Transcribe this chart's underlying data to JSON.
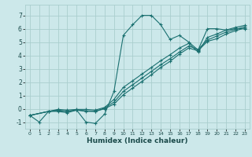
{
  "title": "",
  "xlabel": "Humidex (Indice chaleur)",
  "ylabel": "",
  "bg_color": "#cce8ea",
  "grid_color": "#aacece",
  "line_color": "#1a7070",
  "xlim": [
    -0.5,
    23.5
  ],
  "ylim": [
    -1.5,
    7.8
  ],
  "xticks": [
    0,
    1,
    2,
    3,
    4,
    5,
    6,
    7,
    8,
    9,
    10,
    11,
    12,
    13,
    14,
    15,
    16,
    17,
    18,
    19,
    20,
    21,
    22,
    23
  ],
  "yticks": [
    -1,
    0,
    1,
    2,
    3,
    4,
    5,
    6,
    7
  ],
  "curve1_x": [
    0,
    1,
    2,
    3,
    4,
    5,
    6,
    7,
    8,
    9,
    10,
    11,
    12,
    13,
    14,
    15,
    16,
    17,
    18,
    19,
    20,
    21,
    22,
    23
  ],
  "curve1_y": [
    -0.5,
    -1.0,
    -0.2,
    -0.2,
    -0.3,
    -0.1,
    -1.0,
    -1.1,
    -0.4,
    1.3,
    5.5,
    6.3,
    7.0,
    7.0,
    6.3,
    5.2,
    5.5,
    5.0,
    4.4,
    6.0,
    6.0,
    5.9,
    6.0,
    6.0
  ],
  "curve2_x": [
    0,
    2,
    3,
    4,
    5,
    6,
    7,
    8,
    9,
    10,
    11,
    12,
    13,
    14,
    15,
    16,
    17,
    18,
    19,
    20,
    21,
    22,
    23
  ],
  "curve2_y": [
    -0.5,
    -0.2,
    -0.1,
    -0.2,
    -0.1,
    -0.2,
    -0.2,
    0.0,
    0.35,
    1.05,
    1.55,
    2.05,
    2.55,
    3.1,
    3.55,
    4.1,
    4.55,
    4.35,
    5.05,
    5.25,
    5.6,
    5.85,
    6.05
  ],
  "curve3_x": [
    0,
    2,
    3,
    4,
    5,
    6,
    7,
    8,
    9,
    10,
    11,
    12,
    13,
    14,
    15,
    16,
    17,
    18,
    19,
    20,
    21,
    22,
    23
  ],
  "curve3_y": [
    -0.5,
    -0.2,
    -0.15,
    -0.2,
    -0.1,
    -0.15,
    -0.2,
    0.05,
    0.5,
    1.3,
    1.8,
    2.3,
    2.8,
    3.3,
    3.75,
    4.25,
    4.7,
    4.45,
    5.15,
    5.45,
    5.75,
    5.95,
    6.15
  ],
  "curve4_x": [
    0,
    2,
    3,
    4,
    5,
    6,
    7,
    8,
    9,
    10,
    11,
    12,
    13,
    14,
    15,
    16,
    17,
    18,
    19,
    20,
    21,
    22,
    23
  ],
  "curve4_y": [
    -0.5,
    -0.2,
    -0.05,
    -0.1,
    -0.05,
    -0.05,
    -0.1,
    0.1,
    0.7,
    1.6,
    2.1,
    2.6,
    3.1,
    3.6,
    4.05,
    4.55,
    4.9,
    4.25,
    5.35,
    5.6,
    5.9,
    6.1,
    6.25
  ]
}
